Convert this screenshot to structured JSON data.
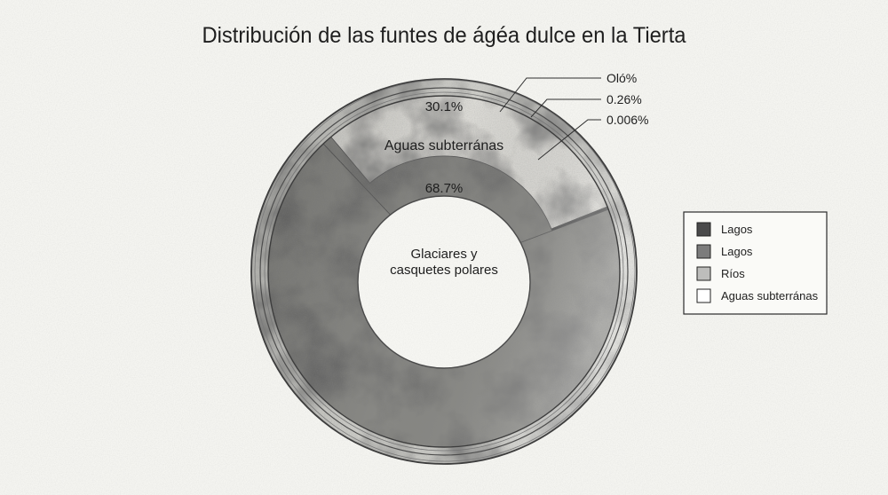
{
  "chart_data": {
    "type": "pie",
    "style": "donut",
    "title": "Distribución de las funtes de ágéa dulce en la Tierta",
    "slices": [
      {
        "label": "Aguas subterránas",
        "value": 30.1,
        "value_label": "30.1%",
        "color": "#e4e3de"
      },
      {
        "value": null,
        "value_label": "Oló%",
        "color": "#4f4f4f"
      },
      {
        "value": 0.26,
        "value_label": "0.26%",
        "color": "#4f4f4f"
      },
      {
        "value": 0.006,
        "value_label": "0.006%",
        "color": "#4f4f4f"
      },
      {
        "label_lines": [
          "Glaciares y",
          "casquetes polares"
        ],
        "value": 68.7,
        "value_label": "68.7%",
        "color": "#8e8e8a"
      }
    ],
    "legend": {
      "position": "right",
      "entries": [
        {
          "label": "Lagos",
          "color": "#4a4a4a"
        },
        {
          "label": "Lagos",
          "color": "#7c7c7c"
        },
        {
          "label": "Ríos",
          "color": "#bdbdbb"
        },
        {
          "label": "Aguas subterránas",
          "color": "#ffffff"
        }
      ]
    }
  }
}
